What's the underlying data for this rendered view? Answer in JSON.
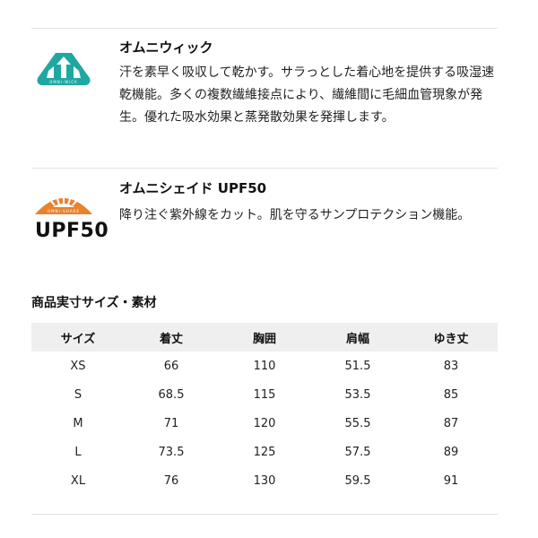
{
  "features": [
    {
      "title": "オムニウィック",
      "description": "汗を素早く吸収して乾かす。サラっとした着心地を提供する吸湿速乾機能。多くの複数繊維接点により、繊維間に毛細血管現象が発生。優れた吸水効果と蒸発散効果を発揮します。",
      "logo_icon": "omni-wick-logo",
      "logo_text": "OMNI-WICK",
      "color": "#1fa8a1"
    },
    {
      "title": "オムニシェイド UPF50",
      "description": "降り注ぐ紫外線をカット。肌を守るサンプロテクション機能。",
      "logo_icon": "omni-shade-logo",
      "logo_text": "OMNI-SHADE",
      "logo_label": "UPF50",
      "color": "#e8822c"
    }
  ],
  "size_section": {
    "title": "商品実寸サイズ・素材",
    "headers": [
      "サイズ",
      "着丈",
      "胸囲",
      "肩幅",
      "ゆき丈"
    ],
    "rows": [
      [
        "XS",
        "66",
        "110",
        "51.5",
        "83"
      ],
      [
        "S",
        "68.5",
        "115",
        "53.5",
        "85"
      ],
      [
        "M",
        "71",
        "120",
        "55.5",
        "87"
      ],
      [
        "L",
        "73.5",
        "125",
        "57.5",
        "89"
      ],
      [
        "XL",
        "76",
        "130",
        "59.5",
        "91"
      ]
    ]
  }
}
